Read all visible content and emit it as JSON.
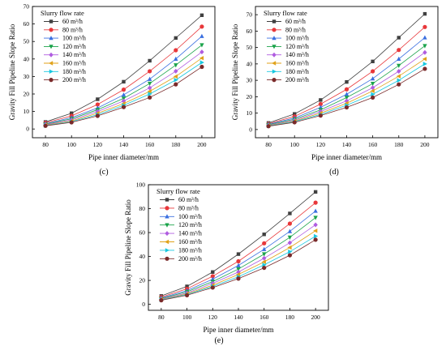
{
  "figure": {
    "panels": [
      {
        "id": "c",
        "label": "(c)",
        "ylabel": "Gravity Fill Pipeline Slope Ratio",
        "xlabel": "Pipe inner diameter/mm",
        "legend_title": "Slurry flow rate"
      },
      {
        "id": "d",
        "label": "(d)",
        "ylabel": "Gravity Fill Pipeline Slope Ratio",
        "xlabel": "Pipe inner diameter/mm",
        "legend_title": "Slurry flow rate"
      },
      {
        "id": "e",
        "label": "(e)",
        "ylabel": "Gravity Fill Pipeline Slope Ratio",
        "xlabel": "Pipe inner diameter/mm",
        "legend_title": "Slurry flow rate"
      }
    ]
  },
  "series_styles": [
    {
      "name": "60 m³/h",
      "color": "#404040",
      "marker": "square"
    },
    {
      "name": "80 m³/h",
      "color": "#e8373a",
      "marker": "circle"
    },
    {
      "name": "100 m³/h",
      "color": "#3a6fe0",
      "marker": "triangle-up"
    },
    {
      "name": "120 m³/h",
      "color": "#1aa34a",
      "marker": "triangle-down"
    },
    {
      "name": "140 m³/h",
      "color": "#b05ce0",
      "marker": "diamond"
    },
    {
      "name": "160 m³/h",
      "color": "#e0a21a",
      "marker": "triangle-left"
    },
    {
      "name": "180 m³/h",
      "color": "#18c8e0",
      "marker": "triangle-right"
    },
    {
      "name": "200 m³/h",
      "color": "#7a2a2a",
      "marker": "circle"
    }
  ],
  "chart_data": [
    {
      "type": "line",
      "xlabel": "Pipe inner diameter/mm",
      "ylabel": "Gravity Fill Pipeline Slope Ratio",
      "legend_title": "Slurry flow rate",
      "legend_position": "top-left",
      "x": [
        80,
        100,
        120,
        140,
        160,
        180,
        200
      ],
      "xlim": [
        70,
        210
      ],
      "ylim": [
        -5,
        70
      ],
      "yticks": [
        0,
        10,
        20,
        30,
        40,
        50,
        60,
        70
      ],
      "xticks": [
        80,
        100,
        120,
        140,
        160,
        180,
        200
      ],
      "series": [
        {
          "name": "60 m³/h",
          "values": [
            4.0,
            9.0,
            17.0,
            27.0,
            39.0,
            52.0,
            65.0
          ]
        },
        {
          "name": "80 m³/h",
          "values": [
            3.5,
            7.5,
            14.0,
            22.5,
            33.0,
            45.0,
            58.5
          ]
        },
        {
          "name": "100 m³/h",
          "values": [
            3.0,
            6.5,
            12.0,
            19.5,
            28.5,
            40.0,
            53.0
          ]
        },
        {
          "name": "120 m³/h",
          "values": [
            2.8,
            5.8,
            11.0,
            17.5,
            26.0,
            36.5,
            48.0
          ]
        },
        {
          "name": "140 m³/h",
          "values": [
            2.5,
            5.2,
            10.0,
            16.0,
            23.5,
            33.0,
            44.0
          ]
        },
        {
          "name": "160 m³/h",
          "values": [
            2.2,
            4.6,
            9.0,
            14.5,
            21.5,
            30.0,
            40.5
          ]
        },
        {
          "name": "180 m³/h",
          "values": [
            2.0,
            4.2,
            8.2,
            13.5,
            20.0,
            28.0,
            38.0
          ]
        },
        {
          "name": "200 m³/h",
          "values": [
            1.8,
            3.8,
            7.5,
            12.5,
            18.0,
            25.5,
            35.5
          ]
        }
      ]
    },
    {
      "type": "line",
      "xlabel": "Pipe inner diameter/mm",
      "ylabel": "Gravity Fill Pipeline Slope Ratio",
      "legend_title": "Slurry flow rate",
      "legend_position": "top-left",
      "x": [
        80,
        100,
        120,
        140,
        160,
        180,
        200
      ],
      "xlim": [
        70,
        210
      ],
      "ylim": [
        -5,
        75
      ],
      "yticks": [
        0,
        10,
        20,
        30,
        40,
        50,
        60,
        70
      ],
      "xticks": [
        80,
        100,
        120,
        140,
        160,
        180,
        200
      ],
      "series": [
        {
          "name": "60 m³/h",
          "values": [
            4.0,
            9.5,
            18.0,
            29.0,
            41.5,
            56.0,
            70.5
          ]
        },
        {
          "name": "80 m³/h",
          "values": [
            3.5,
            8.0,
            15.5,
            24.5,
            35.5,
            48.5,
            62.5
          ]
        },
        {
          "name": "100 m³/h",
          "values": [
            3.2,
            7.0,
            13.5,
            21.5,
            31.0,
            43.0,
            56.0
          ]
        },
        {
          "name": "120 m³/h",
          "values": [
            2.9,
            6.3,
            12.0,
            19.5,
            28.0,
            39.0,
            51.0
          ]
        },
        {
          "name": "140 m³/h",
          "values": [
            2.6,
            5.7,
            11.0,
            17.5,
            25.5,
            35.5,
            47.0
          ]
        },
        {
          "name": "160 m³/h",
          "values": [
            2.4,
            5.2,
            10.0,
            16.0,
            23.5,
            32.5,
            43.0
          ]
        },
        {
          "name": "180 m³/h",
          "values": [
            2.2,
            4.8,
            9.2,
            14.8,
            21.5,
            30.0,
            40.0
          ]
        },
        {
          "name": "200 m³/h",
          "values": [
            2.0,
            4.4,
            8.5,
            13.5,
            19.5,
            27.5,
            37.0
          ]
        }
      ]
    },
    {
      "type": "line",
      "xlabel": "Pipe inner diameter/mm",
      "ylabel": "Gravity Fill Pipeline Slope Ratio",
      "legend_title": "Slurry flow rate",
      "legend_position": "top-left",
      "x": [
        80,
        100,
        120,
        140,
        160,
        180,
        200
      ],
      "xlim": [
        70,
        210
      ],
      "ylim": [
        -5,
        100
      ],
      "yticks": [
        0,
        20,
        40,
        60,
        80,
        100
      ],
      "xticks": [
        80,
        100,
        120,
        140,
        160,
        180,
        200
      ],
      "series": [
        {
          "name": "60 m³/h",
          "values": [
            7.0,
            15.0,
            27.0,
            42.0,
            58.5,
            76.0,
            94.0
          ]
        },
        {
          "name": "80 m³/h",
          "values": [
            6.0,
            13.0,
            23.5,
            36.0,
            51.0,
            67.5,
            85.0
          ]
        },
        {
          "name": "100 m³/h",
          "values": [
            5.3,
            11.5,
            21.0,
            32.5,
            46.0,
            61.0,
            78.0
          ]
        },
        {
          "name": "120 m³/h",
          "values": [
            4.8,
            10.5,
            19.0,
            29.5,
            42.0,
            56.0,
            72.5
          ]
        },
        {
          "name": "140 m³/h",
          "values": [
            4.4,
            9.5,
            17.5,
            27.0,
            38.5,
            51.5,
            66.5
          ]
        },
        {
          "name": "160 m³/h",
          "values": [
            4.0,
            8.8,
            16.0,
            25.0,
            35.5,
            47.5,
            61.5
          ]
        },
        {
          "name": "180 m³/h",
          "values": [
            3.7,
            8.2,
            15.0,
            23.0,
            33.0,
            44.0,
            57.0
          ]
        },
        {
          "name": "200 m³/h",
          "values": [
            3.4,
            7.6,
            14.0,
            21.5,
            30.5,
            41.0,
            54.0
          ]
        }
      ]
    }
  ]
}
